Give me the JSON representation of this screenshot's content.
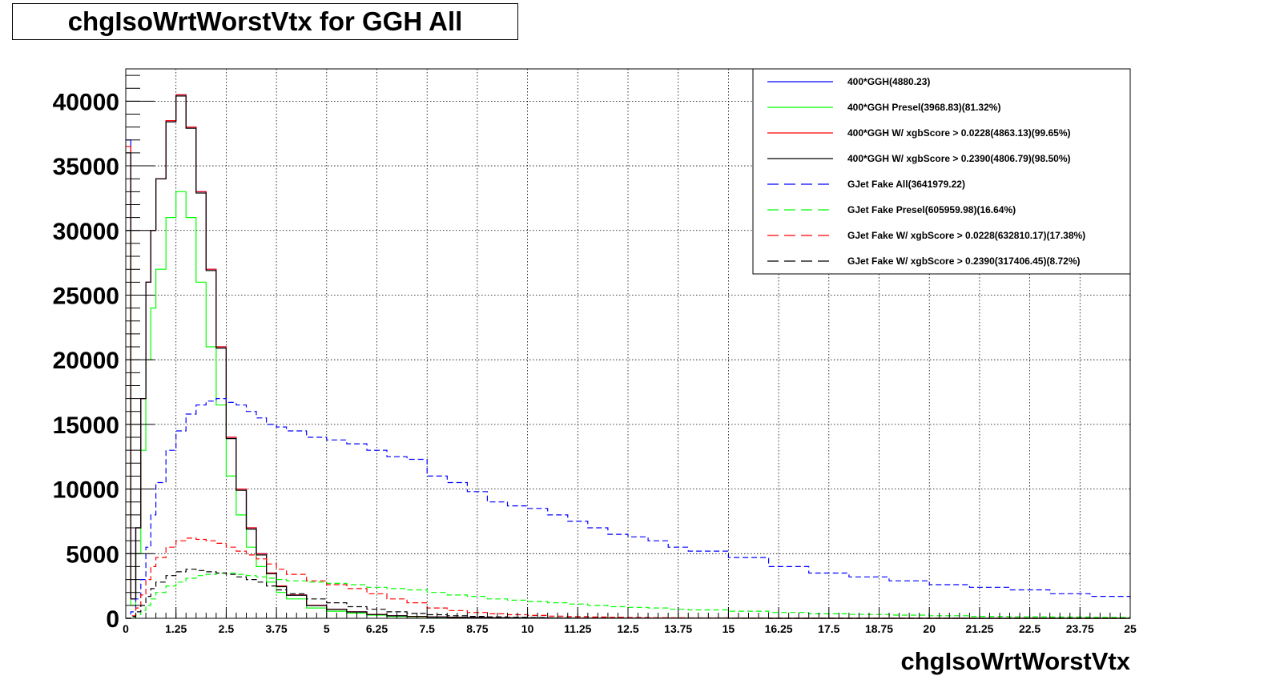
{
  "chart_data": {
    "type": "line",
    "title": "chgIsoWrtWorstVtx for GGH All",
    "xlabel": "chgIsoWrtWorstVtx",
    "ylabel": "",
    "xlim": [
      0,
      25
    ],
    "ylim": [
      0,
      42500
    ],
    "grid": true,
    "legend_position": "top-right",
    "x_ticks": [
      "0",
      "1.25",
      "2.5",
      "3.75",
      "5",
      "6.25",
      "7.5",
      "8.75",
      "10",
      "11.25",
      "12.5",
      "13.75",
      "15",
      "16.25",
      "17.5",
      "18.75",
      "20",
      "21.25",
      "22.5",
      "23.75",
      "25"
    ],
    "y_ticks": [
      "0",
      "5000",
      "10000",
      "15000",
      "20000",
      "25000",
      "30000",
      "35000",
      "40000"
    ],
    "x": [
      0,
      0.125,
      0.25,
      0.375,
      0.5,
      0.625,
      0.75,
      1.0,
      1.25,
      1.5,
      1.75,
      2.0,
      2.25,
      2.5,
      2.75,
      3.0,
      3.25,
      3.5,
      3.75,
      4.0,
      4.5,
      5.0,
      5.5,
      6.0,
      6.5,
      7.0,
      7.5,
      8.0,
      8.5,
      9.0,
      9.5,
      10.0,
      10.5,
      11.0,
      11.5,
      12.0,
      12.5,
      13.0,
      13.5,
      14.0,
      15.0,
      16.0,
      17.0,
      18.0,
      19.0,
      20.0,
      21.0,
      22.0,
      23.0,
      24.0,
      25.0
    ],
    "series": [
      {
        "name": "400*GGH(4880.23)",
        "color": "#0000ff",
        "dash": "solid",
        "values": [
          37000,
          1500,
          7000,
          17000,
          26000,
          30000,
          34000,
          38500,
          40500,
          38000,
          33000,
          27000,
          21000,
          14000,
          10000,
          7000,
          5000,
          3500,
          2500,
          1800,
          1000,
          700,
          500,
          300,
          200,
          150,
          100,
          80,
          60,
          50,
          40,
          30,
          20,
          20,
          15,
          10,
          10,
          10,
          5,
          5,
          5,
          0,
          0,
          0,
          0,
          0,
          0,
          0,
          0,
          0,
          0
        ]
      },
      {
        "name": "400*GGH Presel(3968.83)(81.32%)",
        "color": "#00ff00",
        "dash": "solid",
        "values": [
          30000,
          1000,
          5000,
          13000,
          20000,
          24000,
          27000,
          31000,
          33000,
          31000,
          26000,
          21000,
          16500,
          11000,
          8000,
          5500,
          4000,
          2800,
          2000,
          1500,
          800,
          550,
          400,
          250,
          150,
          120,
          80,
          60,
          50,
          40,
          30,
          25,
          20,
          15,
          10,
          10,
          8,
          6,
          5,
          4,
          3,
          0,
          0,
          0,
          0,
          0,
          0,
          0,
          0,
          0,
          0
        ]
      },
      {
        "name": "400*GGH W/ xgbScore > 0.0228(4863.13)(99.65%)",
        "color": "#ff0000",
        "dash": "solid",
        "values": [
          36500,
          1500,
          7000,
          17000,
          26000,
          30000,
          34000,
          38500,
          40500,
          38000,
          33000,
          27000,
          21000,
          14000,
          10000,
          7000,
          5000,
          3500,
          2500,
          1800,
          1000,
          700,
          500,
          300,
          200,
          150,
          100,
          80,
          60,
          50,
          40,
          30,
          20,
          20,
          15,
          10,
          10,
          10,
          5,
          5,
          5,
          0,
          0,
          0,
          0,
          0,
          0,
          0,
          0,
          0,
          0
        ]
      },
      {
        "name": "400*GGH W/ xgbScore > 0.2390(4806.79)(98.50%)",
        "color": "#000000",
        "dash": "solid",
        "values": [
          36000,
          1500,
          7000,
          17000,
          26000,
          30000,
          34000,
          38400,
          40400,
          37900,
          32900,
          26900,
          20900,
          13900,
          9900,
          6900,
          4900,
          3450,
          2450,
          1780,
          980,
          690,
          490,
          290,
          190,
          140,
          95,
          75,
          55,
          45,
          35,
          25,
          18,
          15,
          12,
          8,
          8,
          8,
          4,
          4,
          4,
          0,
          0,
          0,
          0,
          0,
          0,
          0,
          0,
          0,
          0
        ]
      },
      {
        "name": "GJet Fake All(3641979.22)",
        "color": "#0000ff",
        "dash": "dashed",
        "values": [
          0,
          500,
          1500,
          3000,
          5500,
          8000,
          10500,
          13000,
          14500,
          15800,
          16500,
          16800,
          17000,
          16700,
          16500,
          16000,
          15500,
          15000,
          14800,
          14500,
          14000,
          13800,
          13500,
          13000,
          12500,
          12300,
          11000,
          10500,
          9800,
          9000,
          8700,
          8500,
          8000,
          7500,
          7000,
          6500,
          6300,
          6000,
          5500,
          5200,
          4700,
          4000,
          3500,
          3200,
          2900,
          2600,
          2400,
          2200,
          1900,
          1700,
          1500
        ]
      },
      {
        "name": "GJet Fake Presel(605959.98)(16.64%)",
        "color": "#00ff00",
        "dash": "dashed",
        "values": [
          0,
          100,
          300,
          600,
          1000,
          1500,
          2000,
          2500,
          2800,
          3100,
          3300,
          3400,
          3500,
          3500,
          3400,
          3300,
          3200,
          3100,
          3000,
          2900,
          2800,
          2700,
          2600,
          2400,
          2300,
          2200,
          2000,
          1800,
          1700,
          1500,
          1400,
          1300,
          1200,
          1100,
          1000,
          900,
          850,
          800,
          700,
          650,
          550,
          450,
          350,
          300,
          250,
          200,
          150,
          120,
          100,
          80,
          60
        ]
      },
      {
        "name": "GJet Fake W/ xgbScore > 0.0228(632810.17)(17.38%)",
        "color": "#ff0000",
        "dash": "dashed",
        "values": [
          0,
          200,
          800,
          1800,
          3000,
          4000,
          4700,
          5500,
          6000,
          6200,
          6100,
          6000,
          5800,
          5500,
          5200,
          4900,
          4600,
          4200,
          3800,
          3400,
          2900,
          2600,
          2300,
          1900,
          1500,
          1200,
          800,
          600,
          450,
          350,
          280,
          220,
          170,
          130,
          100,
          80,
          60,
          50,
          40,
          30,
          20,
          10,
          5,
          0,
          0,
          0,
          0,
          0,
          0,
          0,
          0
        ]
      },
      {
        "name": "GJet Fake W/ xgbScore > 0.2390(317406.45)(8.72%)",
        "color": "#000000",
        "dash": "dashed",
        "values": [
          0,
          150,
          500,
          1000,
          1700,
          2300,
          2800,
          3300,
          3600,
          3800,
          3700,
          3600,
          3500,
          3400,
          3200,
          3000,
          2800,
          2500,
          2200,
          1900,
          1500,
          1200,
          900,
          700,
          500,
          380,
          280,
          200,
          150,
          110,
          80,
          60,
          40,
          30,
          20,
          15,
          10,
          8,
          5,
          4,
          2,
          0,
          0,
          0,
          0,
          0,
          0,
          0,
          0,
          0,
          0
        ]
      }
    ]
  }
}
